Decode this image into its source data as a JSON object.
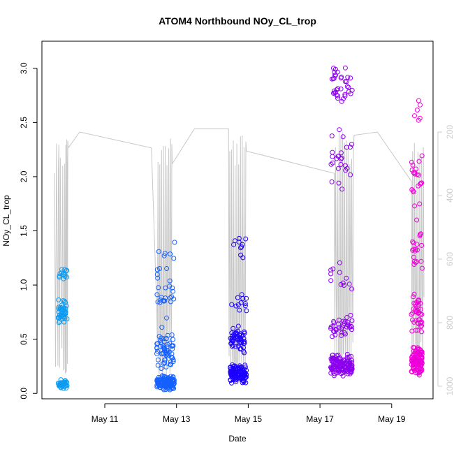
{
  "chart_data": {
    "type": "scatter",
    "title": "ATOM4 Northbound NOy_CL_trop",
    "xlabel": "Date",
    "ylabel": "NOy_CL_trop",
    "x_axis": {
      "domain_days": [
        9.5,
        19.9
      ],
      "ticks": [
        {
          "day": 11,
          "label": "May 11"
        },
        {
          "day": 13,
          "label": "May 13"
        },
        {
          "day": 15,
          "label": "May 15"
        },
        {
          "day": 17,
          "label": "May 17"
        },
        {
          "day": 19,
          "label": "May 19"
        }
      ]
    },
    "ylim": [
      -0.05,
      3.25
    ],
    "y_ticks": [
      "0.0",
      "0.5",
      "1.0",
      "1.5",
      "2.0",
      "2.5",
      "3.0"
    ],
    "y2_axis": {
      "description": "secondary pressure-like axis (inverted)",
      "range": [
        1000,
        200
      ],
      "ticks": [
        "200",
        "400",
        "600",
        "800",
        "1000"
      ],
      "color": "#cccccc"
    },
    "grid": false,
    "series": [
      {
        "color": "#0f9bf0",
        "flight_window": [
          9.7,
          9.95
        ],
        "clusters": [
          {
            "center": 0.08,
            "spread": 0.05,
            "count": 40
          },
          {
            "center": 0.75,
            "spread": 0.13,
            "count": 45
          },
          {
            "center": 1.1,
            "spread": 0.07,
            "count": 14
          }
        ]
      },
      {
        "color": "#1560ff",
        "flight_window": [
          12.45,
          12.95
        ],
        "clusters": [
          {
            "center": 0.1,
            "spread": 0.07,
            "count": 120
          },
          {
            "center": 0.4,
            "spread": 0.2,
            "count": 60
          },
          {
            "center": 0.95,
            "spread": 0.25,
            "count": 25
          },
          {
            "center": 1.3,
            "spread": 0.1,
            "count": 6
          }
        ]
      },
      {
        "color": "#1d00ff",
        "flight_window": [
          14.5,
          14.95
        ],
        "clusters": [
          {
            "center": 0.18,
            "spread": 0.1,
            "count": 130
          },
          {
            "center": 0.5,
            "spread": 0.15,
            "count": 50
          },
          {
            "center": 0.85,
            "spread": 0.12,
            "count": 12
          },
          {
            "center": 1.35,
            "spread": 0.1,
            "count": 10
          }
        ]
      },
      {
        "color": "#8c00ee",
        "flight_window": [
          17.3,
          17.9
        ],
        "clusters": [
          {
            "center": 0.25,
            "spread": 0.12,
            "count": 140
          },
          {
            "center": 0.6,
            "spread": 0.12,
            "count": 35
          },
          {
            "center": 1.1,
            "spread": 0.2,
            "count": 12
          },
          {
            "center": 2.1,
            "spread": 0.4,
            "count": 25
          },
          {
            "center": 2.85,
            "spread": 0.2,
            "count": 35
          }
        ]
      },
      {
        "color": "#ee00d8",
        "flight_window": [
          19.55,
          19.85
        ],
        "clusters": [
          {
            "center": 0.3,
            "spread": 0.15,
            "count": 130
          },
          {
            "center": 0.75,
            "spread": 0.25,
            "count": 40
          },
          {
            "center": 1.4,
            "spread": 0.25,
            "count": 20
          },
          {
            "center": 1.95,
            "spread": 0.25,
            "count": 20
          },
          {
            "center": 2.6,
            "spread": 0.15,
            "count": 6
          }
        ]
      }
    ],
    "pressure_trace": {
      "color": "#c8c8c8",
      "points": [
        [
          9.6,
          330
        ],
        [
          9.68,
          680
        ],
        [
          9.72,
          240
        ],
        [
          9.78,
          650
        ],
        [
          9.85,
          950
        ],
        [
          9.9,
          960
        ],
        [
          9.92,
          560
        ],
        [
          9.95,
          310
        ],
        [
          9.98,
          250
        ],
        [
          10.3,
          200
        ],
        [
          12.3,
          250
        ],
        [
          12.45,
          760
        ],
        [
          12.5,
          820
        ],
        [
          12.55,
          950
        ],
        [
          12.6,
          980
        ],
        [
          12.65,
          950
        ],
        [
          12.7,
          800
        ],
        [
          12.75,
          820
        ],
        [
          12.8,
          650
        ],
        [
          12.85,
          720
        ],
        [
          12.88,
          300
        ],
        [
          13.5,
          190
        ],
        [
          14.45,
          190
        ],
        [
          14.5,
          750
        ],
        [
          14.55,
          850
        ],
        [
          14.6,
          950
        ],
        [
          14.65,
          970
        ],
        [
          14.7,
          960
        ],
        [
          14.75,
          820
        ],
        [
          14.8,
          770
        ],
        [
          14.85,
          690
        ],
        [
          14.9,
          720
        ],
        [
          14.95,
          260
        ],
        [
          17.4,
          330
        ],
        [
          17.45,
          660
        ],
        [
          17.5,
          680
        ],
        [
          17.55,
          950
        ],
        [
          17.6,
          960
        ],
        [
          17.65,
          900
        ],
        [
          17.7,
          820
        ],
        [
          17.75,
          760
        ],
        [
          17.8,
          690
        ],
        [
          17.85,
          600
        ],
        [
          17.9,
          640
        ],
        [
          17.95,
          210
        ],
        [
          18.6,
          200
        ],
        [
          19.55,
          355
        ],
        [
          19.6,
          680
        ],
        [
          19.65,
          700
        ],
        [
          19.7,
          960
        ],
        [
          19.75,
          970
        ],
        [
          19.8,
          800
        ],
        [
          19.85,
          730
        ],
        [
          19.9,
          720
        ]
      ]
    }
  }
}
